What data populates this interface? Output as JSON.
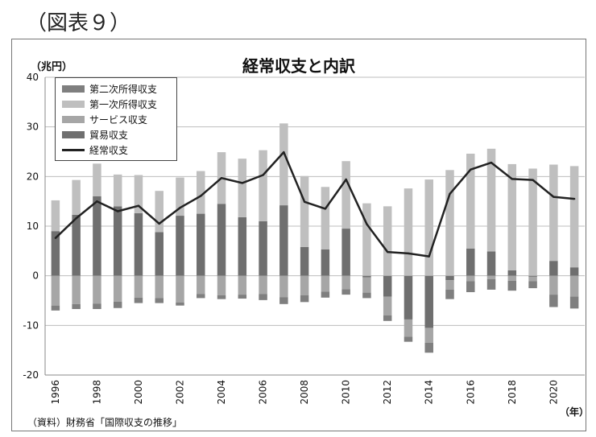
{
  "figure_caption": "（図表９）",
  "chart_data": {
    "type": "bar",
    "title": "経常収支と内訳",
    "ylabel": "（兆円）",
    "xlabel": "（年）",
    "ylim": [
      -20,
      40
    ],
    "yticks": [
      -20,
      -10,
      0,
      10,
      20,
      30,
      40
    ],
    "grid": true,
    "legend_position": "top-left",
    "x": [
      1996,
      1997,
      1998,
      1999,
      2000,
      2001,
      2002,
      2003,
      2004,
      2005,
      2006,
      2007,
      2008,
      2009,
      2010,
      2011,
      2012,
      2013,
      2014,
      2015,
      2016,
      2017,
      2018,
      2019,
      2020,
      2021
    ],
    "x_tick_labels": [
      "1996",
      "1998",
      "2000",
      "2002",
      "2004",
      "2006",
      "2008",
      "2010",
      "2012",
      "2014",
      "2016",
      "2018",
      "2020"
    ],
    "series": [
      {
        "name": "第二次所得収支",
        "kind": "bar",
        "color": "#7f7f7f",
        "values": [
          -1.0,
          -1.0,
          -1.1,
          -1.3,
          -1.1,
          -1.0,
          -0.6,
          -0.8,
          -0.8,
          -0.8,
          -1.2,
          -1.4,
          -1.4,
          -1.2,
          -1.1,
          -1.1,
          -1.1,
          -1.0,
          -2.0,
          -1.9,
          -2.2,
          -2.1,
          -2.0,
          -1.4,
          -2.5,
          -2.4
        ]
      },
      {
        "name": "第一次所得収支",
        "kind": "bar",
        "color": "#bfbfbf",
        "values": [
          6.2,
          7.0,
          6.6,
          6.4,
          7.7,
          8.3,
          7.7,
          8.6,
          10.4,
          11.8,
          14.3,
          16.5,
          14.3,
          12.6,
          13.6,
          14.6,
          14.0,
          17.6,
          19.4,
          21.3,
          19.1,
          20.7,
          21.4,
          21.6,
          19.4,
          20.4
        ]
      },
      {
        "name": "サービス収支",
        "kind": "bar",
        "color": "#a6a6a6",
        "values": [
          -6.0,
          -5.7,
          -5.6,
          -5.2,
          -4.4,
          -4.5,
          -5.4,
          -3.7,
          -3.9,
          -3.8,
          -3.7,
          -4.3,
          -3.9,
          -3.2,
          -2.7,
          -3.1,
          -3.8,
          -3.5,
          -3.0,
          -1.9,
          -1.1,
          -0.7,
          -1.0,
          -0.9,
          -3.8,
          -4.2
        ]
      },
      {
        "name": "貿易収支",
        "kind": "bar",
        "color": "#6f6f6f",
        "values": [
          9.0,
          12.3,
          16.0,
          14.0,
          12.6,
          8.8,
          12.1,
          12.5,
          14.5,
          11.8,
          11.0,
          14.2,
          5.8,
          5.3,
          9.5,
          -0.3,
          -4.2,
          -8.8,
          -10.5,
          -0.9,
          5.5,
          4.9,
          1.1,
          -0.2,
          3.0,
          1.7
        ]
      },
      {
        "name": "経常収支",
        "kind": "line",
        "color": "#222222",
        "values": [
          7.6,
          11.6,
          15.0,
          13.0,
          14.1,
          10.5,
          13.7,
          16.1,
          19.7,
          18.7,
          20.3,
          24.9,
          14.9,
          13.5,
          19.4,
          10.4,
          4.8,
          4.5,
          3.9,
          16.5,
          21.4,
          22.8,
          19.5,
          19.3,
          15.9,
          15.5
        ]
      }
    ]
  },
  "source_note": "（資料）財務省「国際収支の推移」"
}
